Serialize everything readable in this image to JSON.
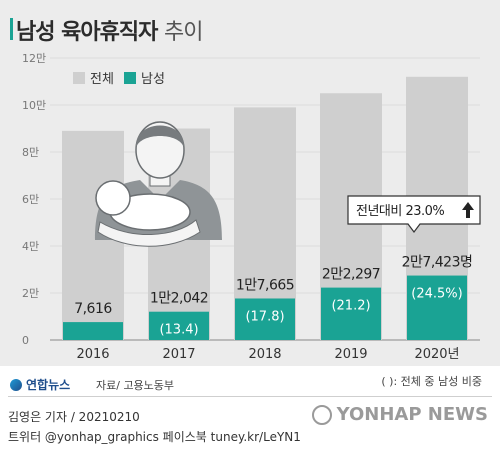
{
  "header": {
    "title_main": "남성 육아휴직자",
    "title_sub": "추이"
  },
  "legend": {
    "total": "전체",
    "male": "남성"
  },
  "annotation": {
    "text": "전년대비 23.0%",
    "arrow": "up-arrow-icon"
  },
  "colors": {
    "total": "#cfcfcf",
    "male": "#1aa394",
    "axis": "#888888"
  },
  "chart_data": {
    "type": "bar",
    "categories": [
      "2016",
      "2017",
      "2018",
      "2019",
      "2020년"
    ],
    "ylim": [
      0,
      120000
    ],
    "y_ticks": [
      0,
      20000,
      40000,
      60000,
      80000,
      100000,
      120000
    ],
    "y_tick_labels": [
      "0",
      "2만",
      "4만",
      "6만",
      "8만",
      "10만",
      "12만"
    ],
    "series": [
      {
        "name": "전체",
        "values": [
          89000,
          90000,
          99000,
          105000,
          112000
        ]
      },
      {
        "name": "남성",
        "values": [
          7616,
          12042,
          17665,
          22297,
          27423
        ]
      }
    ],
    "value_labels": [
      "7,616",
      "1만2,042",
      "1만7,665",
      "2만2,297",
      "2만7,423명"
    ],
    "share_labels": [
      "",
      "(13.4)",
      "(17.8)",
      "(21.2)",
      "(24.5%)"
    ],
    "legend_position": "top-left"
  },
  "footer": {
    "logo": "연합뉴스",
    "source": "자료/ 고용노동부",
    "note": "( ): 전체 중 남성 비중",
    "credit1": "김영은 기자 / 20210210",
    "credit2": "트위터 @yonhap_graphics  페이스북 tuney.kr/LeYN1",
    "watermark": "YONHAP NEWS"
  }
}
